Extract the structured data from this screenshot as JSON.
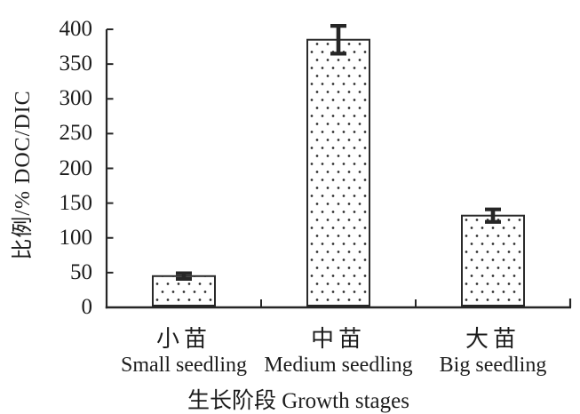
{
  "chart_data": {
    "type": "bar",
    "title": "",
    "ylabel": "比例/% DOC/DIC",
    "xlabel": "生长阶段 Growth stages",
    "ylim": [
      0,
      400
    ],
    "ytick_step": 50,
    "yticks": [
      0,
      50,
      100,
      150,
      200,
      250,
      300,
      350,
      400
    ],
    "grid": false,
    "legend": null,
    "categories": [
      {
        "cn": "小苗",
        "en": "Small seedling"
      },
      {
        "cn": "中苗",
        "en": "Medium seedling"
      },
      {
        "cn": "大苗",
        "en": "Big seedling"
      }
    ],
    "series": [
      {
        "name": "DOC/DIC ratio (%)",
        "values": [
          45,
          385,
          132
        ],
        "errors": [
          4,
          20,
          9
        ]
      }
    ],
    "bar_style": {
      "fill": "#ffffff",
      "pattern": "polka-dots",
      "border": "#2a2a2a"
    },
    "colors": {
      "ink": "#262626",
      "text": "#1c1c1c",
      "background": "#ffffff"
    }
  }
}
